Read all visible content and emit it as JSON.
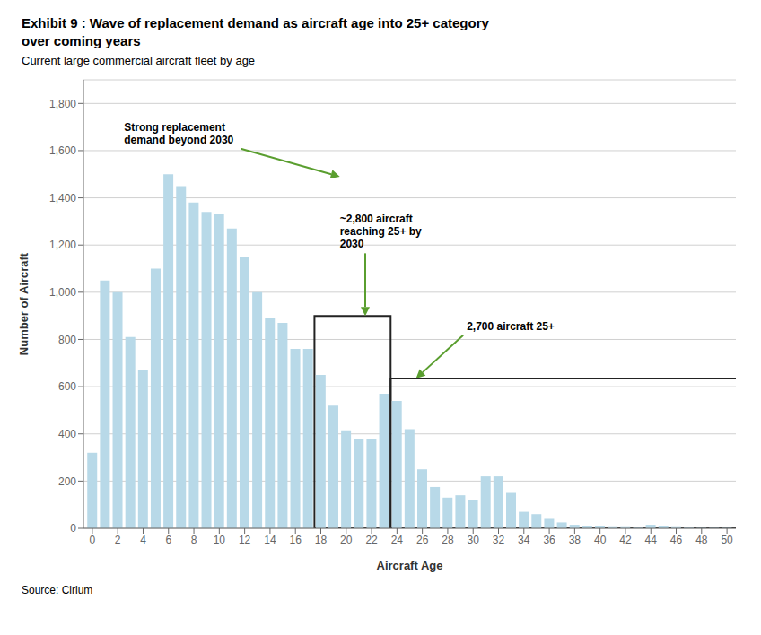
{
  "chart_data": {
    "type": "bar",
    "title": "Exhibit 9 : Wave of replacement demand as aircraft age into 25+ category\nover coming years",
    "subtitle": "Current large commercial aircraft fleet by age",
    "source": "Source: Cirium",
    "xlabel": "Aircraft Age",
    "ylabel": "Number of Aircraft",
    "color": "#b8d9e8",
    "grid": true,
    "x": [
      0,
      1,
      2,
      3,
      4,
      5,
      6,
      7,
      8,
      9,
      10,
      11,
      12,
      13,
      14,
      15,
      16,
      17,
      18,
      19,
      20,
      21,
      22,
      23,
      24,
      25,
      26,
      27,
      28,
      29,
      30,
      31,
      32,
      33,
      34,
      35,
      36,
      37,
      38,
      39,
      40,
      41,
      42,
      43,
      44,
      45,
      46,
      47,
      48,
      49,
      50
    ],
    "values": [
      320,
      1050,
      1000,
      810,
      670,
      1100,
      1500,
      1450,
      1380,
      1340,
      1330,
      1270,
      1150,
      1000,
      890,
      870,
      760,
      760,
      650,
      520,
      415,
      380,
      380,
      570,
      540,
      420,
      250,
      175,
      130,
      140,
      120,
      220,
      220,
      150,
      70,
      60,
      40,
      25,
      15,
      10,
      8,
      5,
      5,
      3,
      15,
      10,
      5,
      3,
      2,
      2,
      2
    ],
    "xlim": [
      -0.7,
      50.7
    ],
    "xticks": [
      0,
      2,
      4,
      6,
      8,
      10,
      12,
      14,
      16,
      18,
      20,
      22,
      24,
      26,
      28,
      30,
      32,
      34,
      36,
      38,
      40,
      42,
      44,
      46,
      48,
      50
    ],
    "ylim": [
      0,
      1900
    ],
    "yticks": [
      0,
      200,
      400,
      600,
      800,
      {
        "value": 1000,
        "label": "1,000"
      },
      {
        "value": 1200,
        "label": "1,200"
      },
      {
        "value": 1400,
        "label": "1,400"
      },
      {
        "value": 1600,
        "label": "1,600"
      },
      {
        "value": 1800,
        "label": "1,800"
      }
    ],
    "boxes": [
      {
        "x": 17.5,
        "width": 6,
        "height": 900,
        "color": "#222222"
      },
      {
        "x": 23.5,
        "width": 27.5,
        "height": 635,
        "color": "#222222"
      }
    ],
    "annotations": [
      {
        "text": "Strong replacement\ndemand beyond 2030",
        "xy": [
          19.5,
          1490
        ],
        "xytext": [
          2.5,
          1730
        ],
        "color": "#5a9e2f"
      },
      {
        "text": "~2,800 aircraft\nreaching 25+ by\n2030",
        "xy": [
          21.5,
          900
        ],
        "xytext": [
          19.5,
          1340
        ],
        "color": "#5a9e2f"
      },
      {
        "text": "2,700 aircraft 25+",
        "xy": [
          25.5,
          635
        ],
        "xytext": [
          29.5,
          860
        ],
        "color": "#5a9e2f"
      }
    ]
  }
}
